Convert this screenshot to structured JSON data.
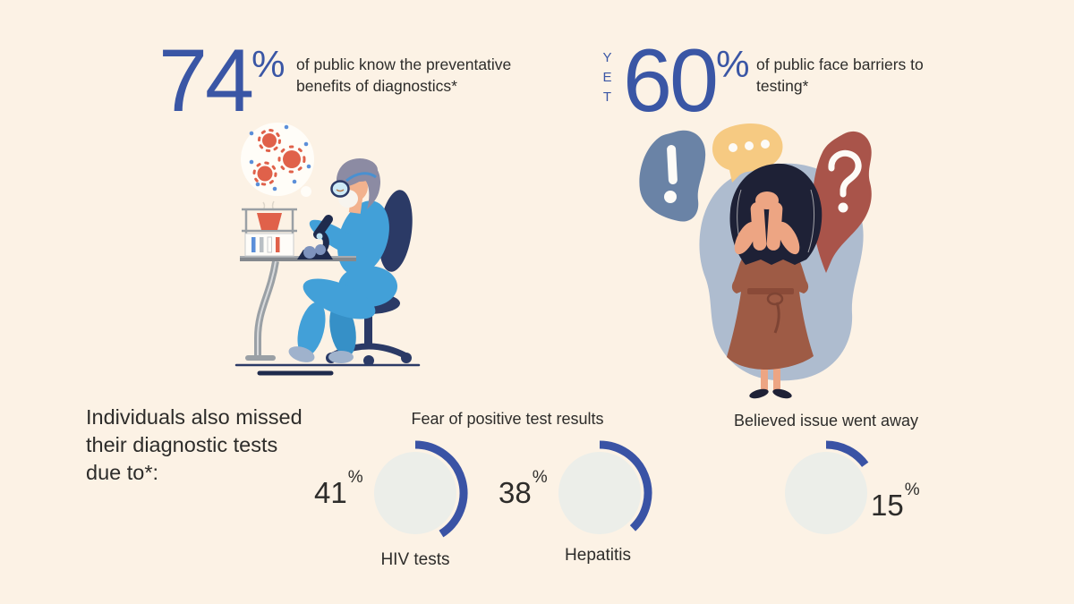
{
  "theme": {
    "background": "#fcf2e5",
    "accent": "#3a56a5",
    "text": "#2d2c2a",
    "track": "#eceee9",
    "arc": "#3a53a5"
  },
  "stats": [
    {
      "prefix": "",
      "value": "74",
      "percent_sign": "%",
      "description_lines": [
        "of public know the preventative",
        "benefits of diagnostics*"
      ]
    },
    {
      "prefix": "YET",
      "value": "60",
      "percent_sign": "%",
      "description_lines": [
        "of public face barriers to",
        "testing*"
      ]
    }
  ],
  "bottom_section": {
    "intro_lines": [
      "Individuals also missed",
      "their diagnostic tests",
      "due to*:"
    ],
    "group_titles": [
      "Fear of positive test results",
      "Believed issue went away"
    ]
  },
  "chart_data": {
    "type": "donut",
    "title": "Individuals also missed their diagnostic tests due to*:",
    "headline_stats": [
      {
        "value": 74,
        "unit": "%",
        "text": "of public know the preventative benefits of diagnostics*"
      },
      {
        "value": 60,
        "unit": "%",
        "prefix": "YET",
        "text": "of public face barriers to testing*"
      }
    ],
    "donuts": [
      {
        "value": 41,
        "display": "41",
        "percent_sign": "%",
        "label": "HIV tests",
        "group": "Fear of positive test results",
        "label_side": "left"
      },
      {
        "value": 38,
        "display": "38",
        "percent_sign": "%",
        "label": "Hepatitis",
        "group": "Fear of positive test results",
        "label_side": "left"
      },
      {
        "value": 15,
        "display": "15",
        "percent_sign": "%",
        "label": "",
        "group": "Believed issue went away",
        "label_side": "right"
      }
    ],
    "arc_start_angle_deg": 0,
    "arc_direction": "clockwise",
    "arc_color": "#3a53a5",
    "track_color": "#eceee9"
  },
  "illustrations": {
    "scientist": "scientist-at-microscope-illustration",
    "worried_woman": "worried-woman-illustration"
  }
}
